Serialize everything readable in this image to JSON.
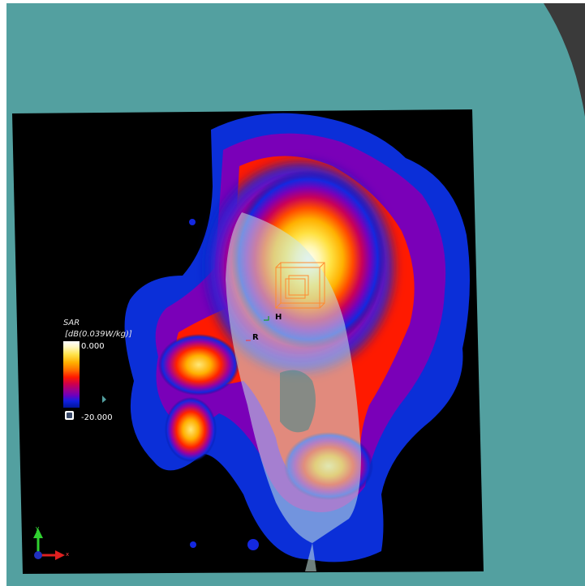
{
  "legend": {
    "title": "SAR",
    "unit": "[dB(0.039W/kg)]",
    "max_label": "0.000",
    "min_label": "-20.000"
  },
  "markers": {
    "h": "H",
    "r": "R"
  },
  "axes": {
    "y": "y",
    "x": "x"
  },
  "colors": {
    "background": "#53a0a0",
    "scan_area": "#000000",
    "peak": "#ffffff",
    "low": "#00169a"
  }
}
